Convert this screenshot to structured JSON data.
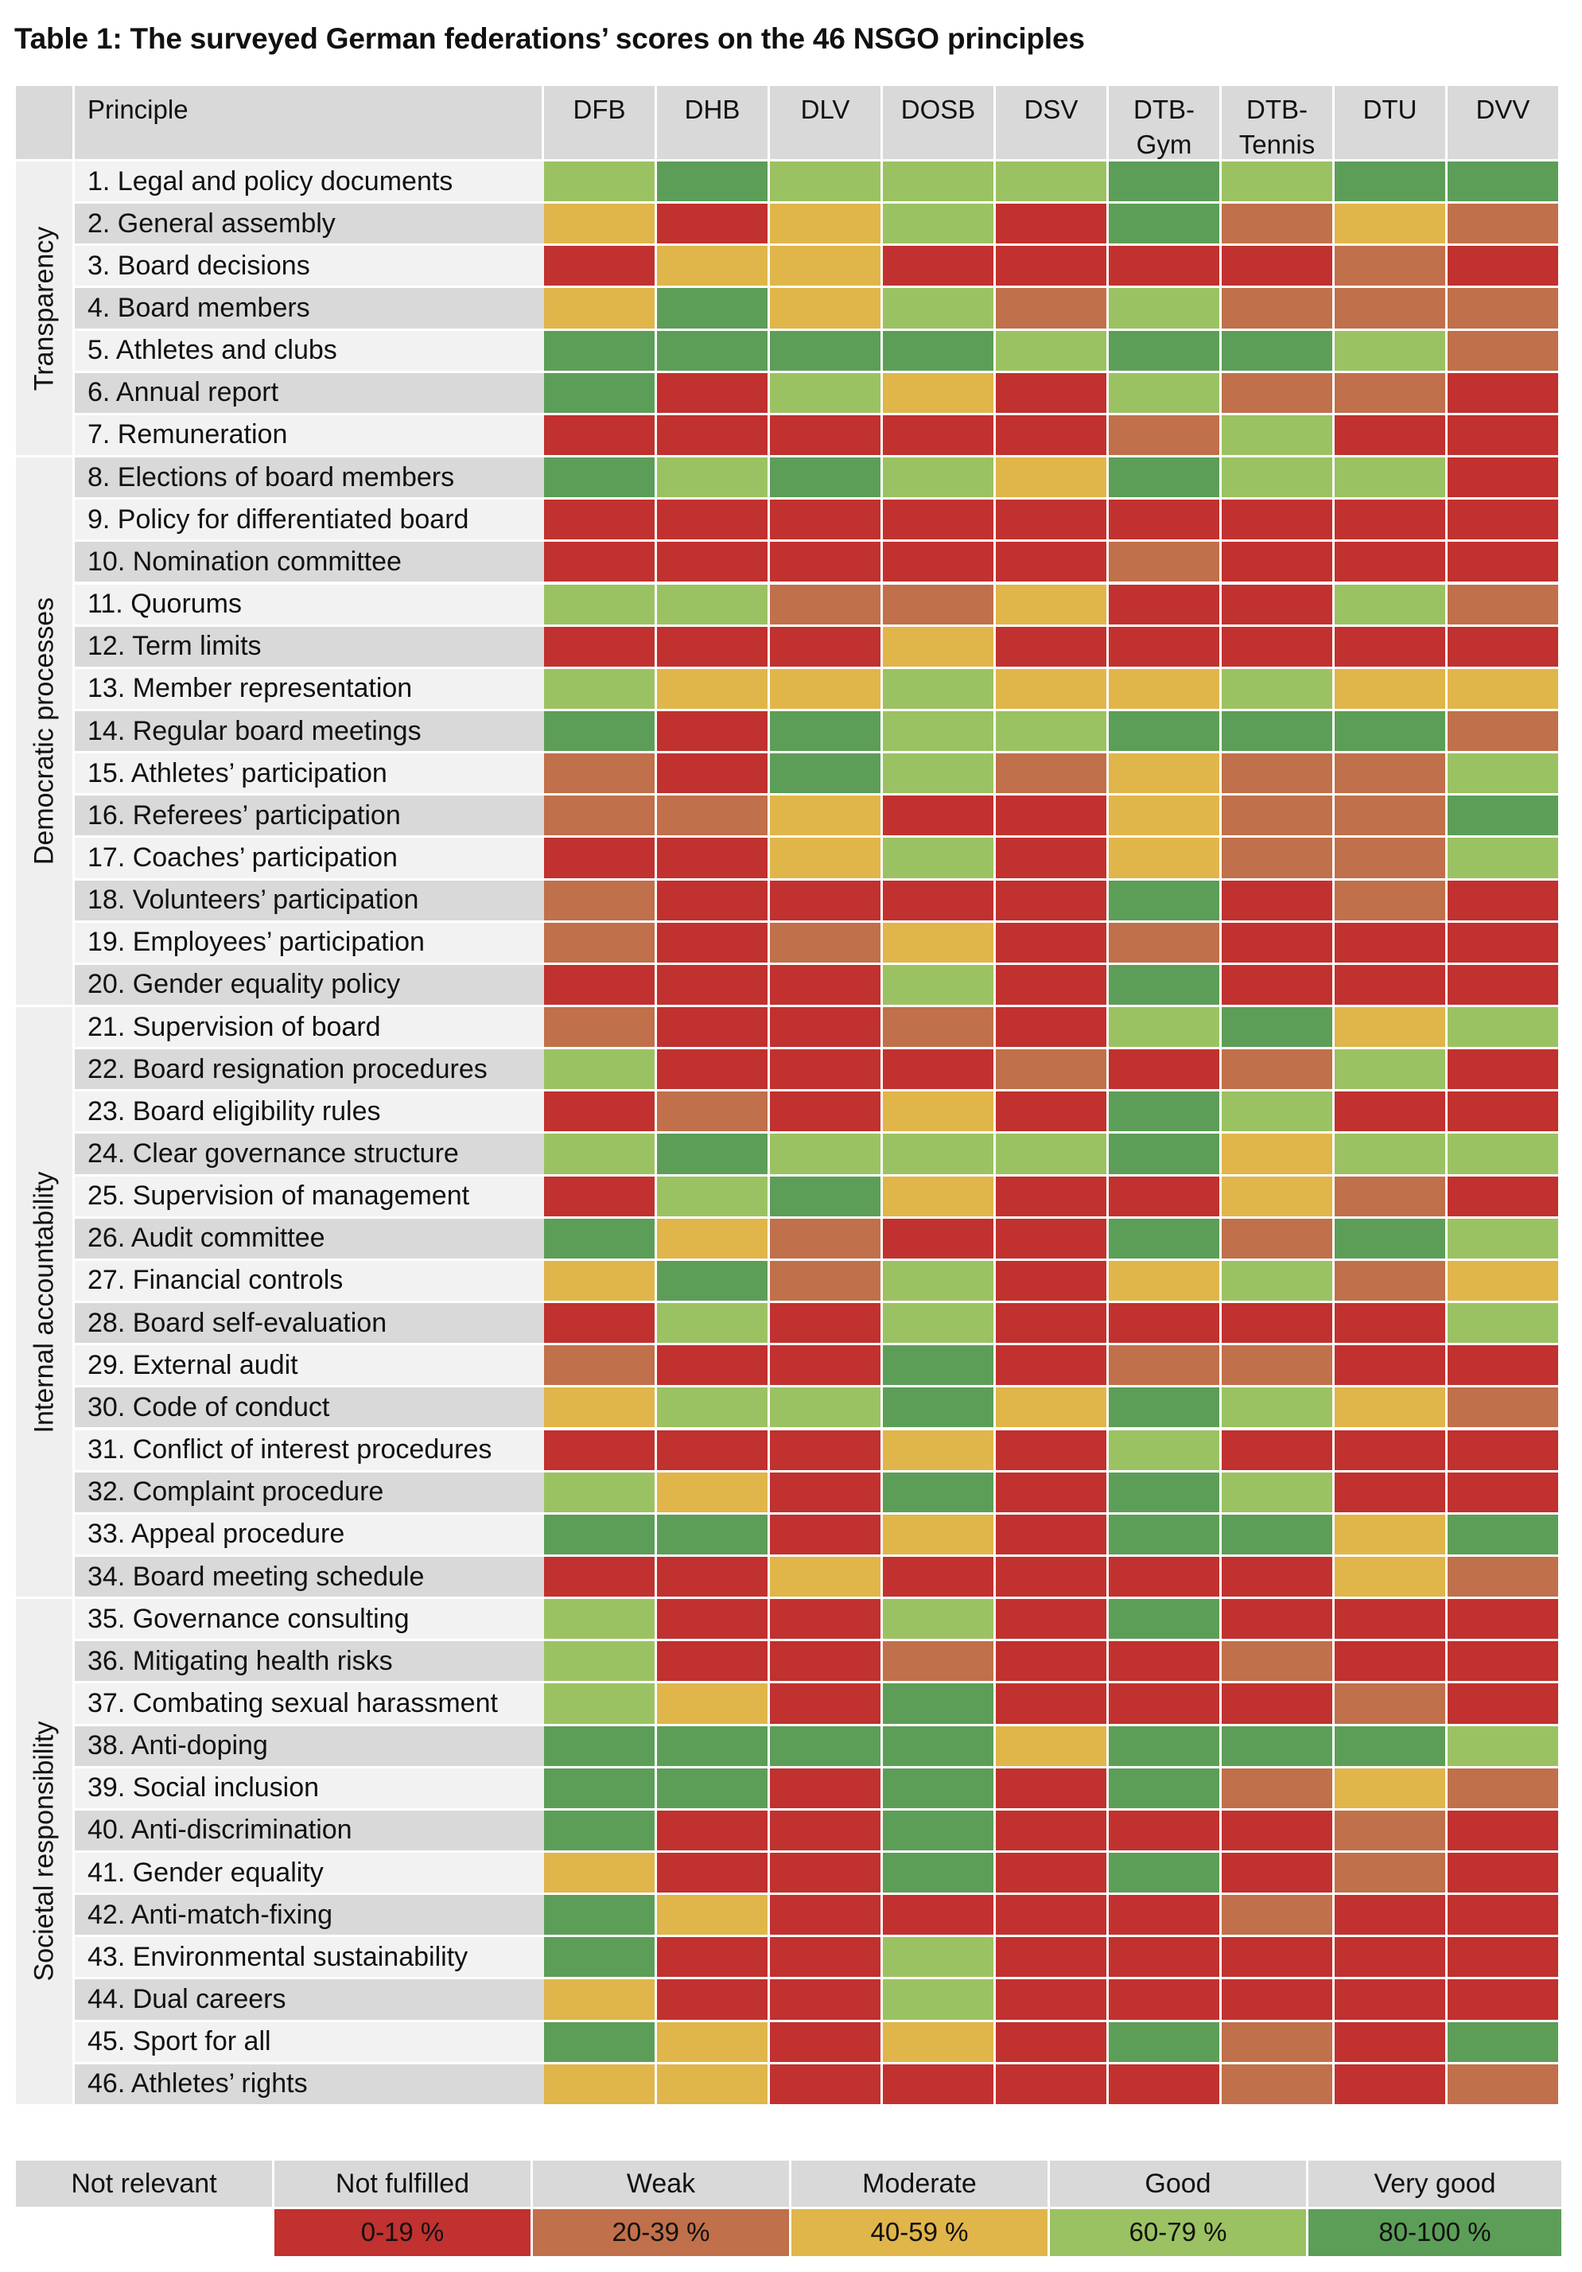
{
  "title": "Table 1: The surveyed German federations’ scores on the 46 NSGO principles",
  "header": {
    "principle_label": "Principle",
    "federations": [
      "DFB",
      "DHB",
      "DLV",
      "DOSB",
      "DSV",
      "DTB-\nGym",
      "DTB-\nTennis",
      "DTU",
      "DVV"
    ]
  },
  "colors": {
    "nf": "#c0312f",
    "w": "#c0704a",
    "m": "#e0b54a",
    "g": "#9bc262",
    "vg": "#5c9e58",
    "header_bg": "#d9d9d9",
    "row_light": "#f2f2f2",
    "row_dark": "#d9d9d9"
  },
  "categories": [
    {
      "name": "Transparency",
      "rows": 7
    },
    {
      "name": "Democratic processes",
      "rows": 13
    },
    {
      "name": "Internal accountability",
      "rows": 14
    },
    {
      "name": "Societal responsibility",
      "rows": 12
    }
  ],
  "rows": [
    {
      "label": "1. Legal and policy documents",
      "scores": [
        "g",
        "vg",
        "g",
        "g",
        "g",
        "vg",
        "g",
        "vg",
        "vg"
      ]
    },
    {
      "label": "2. General assembly",
      "scores": [
        "m",
        "nf",
        "m",
        "g",
        "nf",
        "vg",
        "w",
        "m",
        "w"
      ]
    },
    {
      "label": "3. Board decisions",
      "scores": [
        "nf",
        "m",
        "m",
        "nf",
        "nf",
        "nf",
        "nf",
        "w",
        "nf"
      ]
    },
    {
      "label": "4. Board members",
      "scores": [
        "m",
        "vg",
        "m",
        "g",
        "w",
        "g",
        "w",
        "w",
        "w"
      ]
    },
    {
      "label": "5. Athletes and clubs",
      "scores": [
        "vg",
        "vg",
        "vg",
        "vg",
        "g",
        "vg",
        "vg",
        "g",
        "w"
      ]
    },
    {
      "label": "6. Annual report",
      "scores": [
        "vg",
        "nf",
        "g",
        "m",
        "nf",
        "g",
        "w",
        "w",
        "nf"
      ]
    },
    {
      "label": "7. Remuneration",
      "scores": [
        "nf",
        "nf",
        "nf",
        "nf",
        "nf",
        "w",
        "g",
        "nf",
        "nf"
      ]
    },
    {
      "label": "8. Elections of board members",
      "scores": [
        "vg",
        "g",
        "vg",
        "g",
        "m",
        "vg",
        "g",
        "g",
        "nf"
      ]
    },
    {
      "label": "9. Policy for differentiated board",
      "scores": [
        "nf",
        "nf",
        "nf",
        "nf",
        "nf",
        "nf",
        "nf",
        "nf",
        "nf"
      ]
    },
    {
      "label": "10. Nomination committee",
      "scores": [
        "nf",
        "nf",
        "nf",
        "nf",
        "nf",
        "w",
        "nf",
        "nf",
        "nf"
      ]
    },
    {
      "label": "11. Quorums",
      "scores": [
        "g",
        "g",
        "w",
        "w",
        "m",
        "nf",
        "nf",
        "g",
        "w"
      ]
    },
    {
      "label": "12. Term limits",
      "scores": [
        "nf",
        "nf",
        "nf",
        "m",
        "nf",
        "nf",
        "nf",
        "nf",
        "nf"
      ]
    },
    {
      "label": "13. Member representation",
      "scores": [
        "g",
        "m",
        "m",
        "g",
        "m",
        "m",
        "g",
        "m",
        "m"
      ]
    },
    {
      "label": "14. Regular board meetings",
      "scores": [
        "vg",
        "nf",
        "vg",
        "g",
        "g",
        "vg",
        "vg",
        "vg",
        "w"
      ]
    },
    {
      "label": "15. Athletes’ participation",
      "scores": [
        "w",
        "nf",
        "vg",
        "g",
        "w",
        "m",
        "w",
        "w",
        "g"
      ]
    },
    {
      "label": "16. Referees’ participation",
      "scores": [
        "w",
        "w",
        "m",
        "nf",
        "nf",
        "m",
        "w",
        "w",
        "vg"
      ]
    },
    {
      "label": "17. Coaches’ participation",
      "scores": [
        "nf",
        "nf",
        "m",
        "g",
        "nf",
        "m",
        "w",
        "w",
        "g"
      ]
    },
    {
      "label": "18. Volunteers’ participation",
      "scores": [
        "w",
        "nf",
        "nf",
        "nf",
        "nf",
        "vg",
        "nf",
        "w",
        "nf"
      ]
    },
    {
      "label": "19. Employees’ participation",
      "scores": [
        "w",
        "nf",
        "w",
        "m",
        "nf",
        "w",
        "nf",
        "nf",
        "nf"
      ]
    },
    {
      "label": "20. Gender equality policy",
      "scores": [
        "nf",
        "nf",
        "nf",
        "g",
        "nf",
        "vg",
        "nf",
        "nf",
        "nf"
      ]
    },
    {
      "label": "21. Supervision of board",
      "scores": [
        "w",
        "nf",
        "nf",
        "w",
        "nf",
        "g",
        "vg",
        "m",
        "g"
      ]
    },
    {
      "label": "22. Board resignation procedures",
      "scores": [
        "g",
        "nf",
        "nf",
        "nf",
        "w",
        "nf",
        "w",
        "g",
        "nf"
      ]
    },
    {
      "label": "23. Board eligibility rules",
      "scores": [
        "nf",
        "w",
        "nf",
        "m",
        "nf",
        "vg",
        "g",
        "nf",
        "nf"
      ]
    },
    {
      "label": "24. Clear governance structure",
      "scores": [
        "g",
        "vg",
        "g",
        "g",
        "g",
        "vg",
        "m",
        "g",
        "g"
      ]
    },
    {
      "label": "25. Supervision of management",
      "scores": [
        "nf",
        "g",
        "vg",
        "m",
        "nf",
        "nf",
        "m",
        "w",
        "nf"
      ]
    },
    {
      "label": "26. Audit committee",
      "scores": [
        "vg",
        "m",
        "w",
        "nf",
        "nf",
        "vg",
        "w",
        "vg",
        "g"
      ]
    },
    {
      "label": "27. Financial controls",
      "scores": [
        "m",
        "vg",
        "w",
        "g",
        "nf",
        "m",
        "g",
        "w",
        "m"
      ]
    },
    {
      "label": "28. Board self-evaluation",
      "scores": [
        "nf",
        "g",
        "nf",
        "g",
        "nf",
        "nf",
        "nf",
        "nf",
        "g"
      ]
    },
    {
      "label": "29. External audit",
      "scores": [
        "w",
        "nf",
        "nf",
        "vg",
        "nf",
        "w",
        "w",
        "nf",
        "nf"
      ]
    },
    {
      "label": "30. Code of conduct",
      "scores": [
        "m",
        "g",
        "g",
        "vg",
        "m",
        "vg",
        "g",
        "m",
        "w"
      ]
    },
    {
      "label": "31. Conflict of interest procedures",
      "scores": [
        "nf",
        "nf",
        "nf",
        "m",
        "nf",
        "g",
        "nf",
        "nf",
        "nf"
      ]
    },
    {
      "label": "32. Complaint procedure",
      "scores": [
        "g",
        "m",
        "nf",
        "vg",
        "nf",
        "vg",
        "g",
        "nf",
        "nf"
      ]
    },
    {
      "label": "33. Appeal procedure",
      "scores": [
        "vg",
        "vg",
        "nf",
        "m",
        "nf",
        "vg",
        "vg",
        "m",
        "vg"
      ]
    },
    {
      "label": "34. Board meeting schedule",
      "scores": [
        "nf",
        "nf",
        "m",
        "nf",
        "nf",
        "nf",
        "nf",
        "m",
        "w"
      ]
    },
    {
      "label": "35. Governance consulting",
      "scores": [
        "g",
        "nf",
        "nf",
        "g",
        "nf",
        "vg",
        "nf",
        "nf",
        "nf"
      ]
    },
    {
      "label": "36. Mitigating health risks",
      "scores": [
        "g",
        "nf",
        "nf",
        "w",
        "nf",
        "nf",
        "w",
        "nf",
        "nf"
      ]
    },
    {
      "label": "37. Combating sexual harassment",
      "scores": [
        "g",
        "m",
        "nf",
        "vg",
        "nf",
        "nf",
        "nf",
        "w",
        "nf"
      ]
    },
    {
      "label": "38. Anti-doping",
      "scores": [
        "vg",
        "vg",
        "vg",
        "vg",
        "m",
        "vg",
        "vg",
        "vg",
        "g"
      ]
    },
    {
      "label": "39. Social inclusion",
      "scores": [
        "vg",
        "vg",
        "nf",
        "vg",
        "nf",
        "vg",
        "w",
        "m",
        "w"
      ]
    },
    {
      "label": "40. Anti-discrimination",
      "scores": [
        "vg",
        "nf",
        "nf",
        "vg",
        "nf",
        "nf",
        "nf",
        "w",
        "nf"
      ]
    },
    {
      "label": "41. Gender equality",
      "scores": [
        "m",
        "nf",
        "nf",
        "vg",
        "nf",
        "vg",
        "nf",
        "w",
        "nf"
      ]
    },
    {
      "label": "42. Anti-match-fixing",
      "scores": [
        "vg",
        "m",
        "nf",
        "nf",
        "nf",
        "nf",
        "w",
        "nf",
        "nf"
      ]
    },
    {
      "label": "43. Environmental sustainability",
      "scores": [
        "vg",
        "nf",
        "nf",
        "g",
        "nf",
        "nf",
        "nf",
        "nf",
        "nf"
      ]
    },
    {
      "label": "44. Dual careers",
      "scores": [
        "m",
        "nf",
        "nf",
        "g",
        "nf",
        "nf",
        "nf",
        "nf",
        "nf"
      ]
    },
    {
      "label": "45. Sport for all",
      "scores": [
        "vg",
        "m",
        "nf",
        "m",
        "nf",
        "vg",
        "w",
        "nf",
        "vg"
      ]
    },
    {
      "label": "46. Athletes’ rights",
      "scores": [
        "m",
        "m",
        "nf",
        "nf",
        "nf",
        "nf",
        "w",
        "nf",
        "w"
      ]
    }
  ],
  "legend": [
    {
      "label": "Not relevant",
      "range": "",
      "key": ""
    },
    {
      "label": "Not fulfilled",
      "range": "0-19 %",
      "key": "nf"
    },
    {
      "label": "Weak",
      "range": "20-39 %",
      "key": "w"
    },
    {
      "label": "Moderate",
      "range": "40-59 %",
      "key": "m"
    },
    {
      "label": "Good",
      "range": "60-79 %",
      "key": "g"
    },
    {
      "label": "Very good",
      "range": "80-100 %",
      "key": "vg"
    }
  ]
}
